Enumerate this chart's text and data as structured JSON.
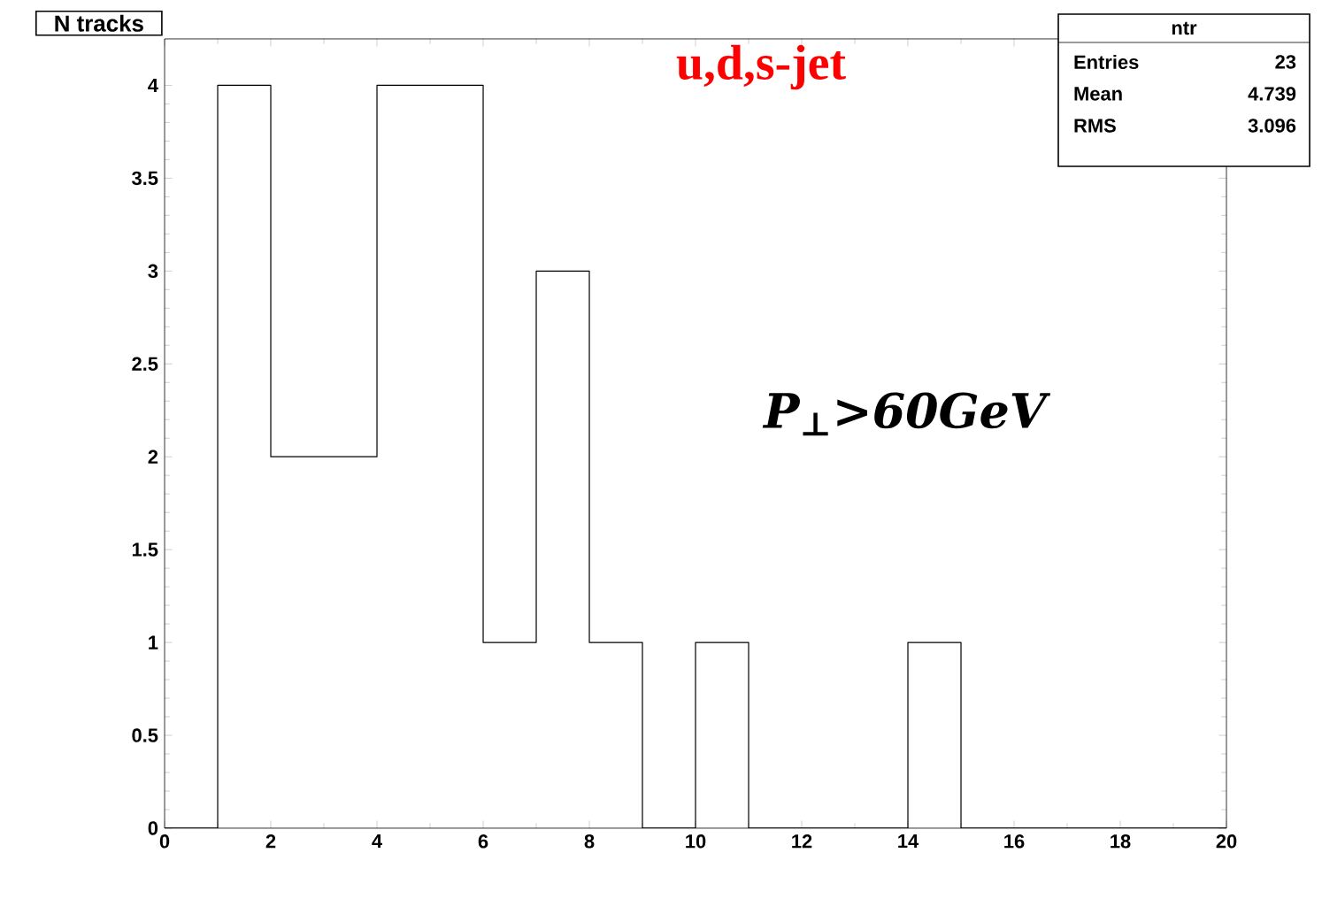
{
  "chart_data": {
    "type": "histogram",
    "title": "N tracks",
    "bins": [
      0,
      1,
      2,
      3,
      4,
      5,
      6,
      7,
      8,
      9,
      10,
      11,
      12,
      13,
      14,
      15,
      16,
      17,
      18,
      19,
      20
    ],
    "values": [
      0,
      4,
      2,
      2,
      4,
      4,
      1,
      3,
      1,
      0,
      1,
      0,
      0,
      0,
      1,
      0,
      0,
      0,
      0,
      0
    ],
    "color": "#000000",
    "xlim": [
      0,
      20
    ],
    "xticks": [
      0,
      2,
      4,
      6,
      8,
      10,
      12,
      14,
      16,
      18,
      20
    ],
    "ylim": [
      0,
      4.25
    ],
    "yticks": [
      0,
      0.5,
      1,
      1.5,
      2,
      2.5,
      3,
      3.5,
      4
    ],
    "grid": false,
    "annotations": [
      "u,d,s-jet",
      "ntr",
      "Entries",
      "23",
      "Mean",
      "4.739",
      "RMS",
      "3.096",
      "P$_{⊥}$>60GeV"
    ]
  }
}
